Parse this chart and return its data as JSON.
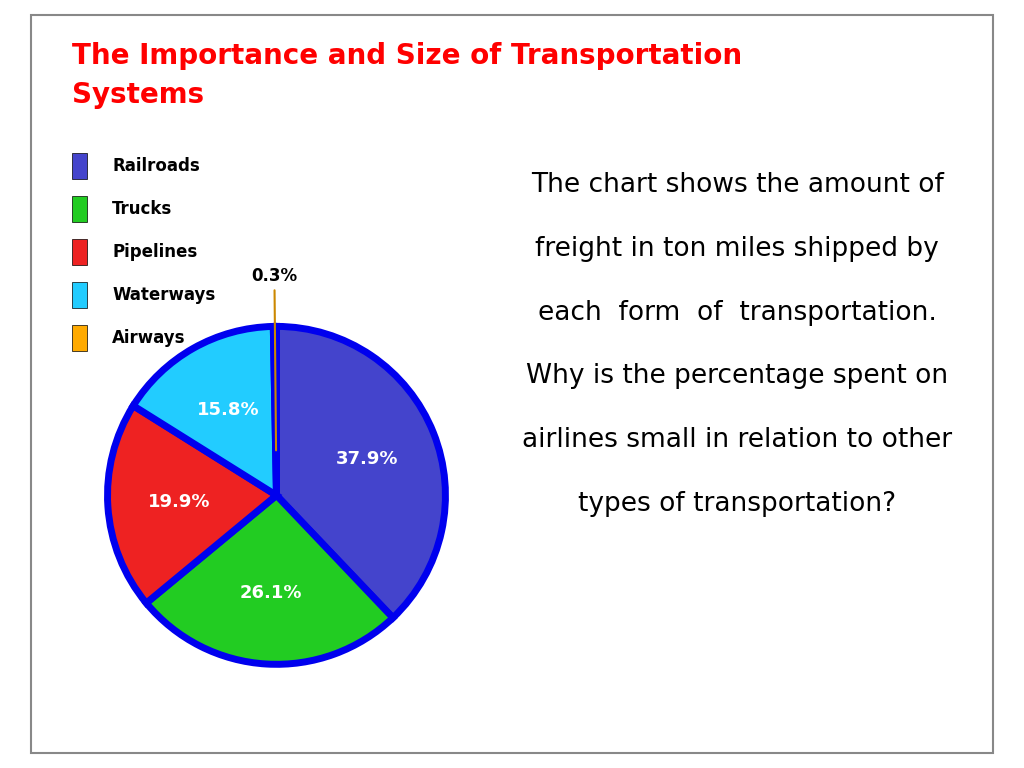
{
  "title_line1": "The Importance and Size of Transportation",
  "title_line2": "Systems",
  "title_color": "#ff0000",
  "title_fontsize": 20,
  "title_fontweight": "bold",
  "labels": [
    "Railroads",
    "Trucks",
    "Pipelines",
    "Waterways",
    "Airways"
  ],
  "values": [
    37.9,
    26.1,
    19.9,
    15.8,
    0.3
  ],
  "colors": [
    "#4444cc",
    "#22cc22",
    "#ee2222",
    "#22ccff",
    "#ffaa00"
  ],
  "wedge_edge_color": "#0000ee",
  "wedge_edge_width": 5,
  "pct_labels": [
    "37.9%",
    "26.1%",
    "19.9%",
    "15.8%",
    "0.3%"
  ],
  "pct_colors": [
    "white",
    "white",
    "white",
    "white",
    "black"
  ],
  "description_lines": [
    "The chart shows the amount of",
    "freight in ton miles shipped by",
    "each  form  of  transportation.",
    "Why is the percentage spent on",
    "airlines small in relation to other",
    "types of transportation?"
  ],
  "description_fontsize": 19,
  "bg_color": "#ffffff",
  "border_color": "#888888",
  "legend_fontsize": 12
}
